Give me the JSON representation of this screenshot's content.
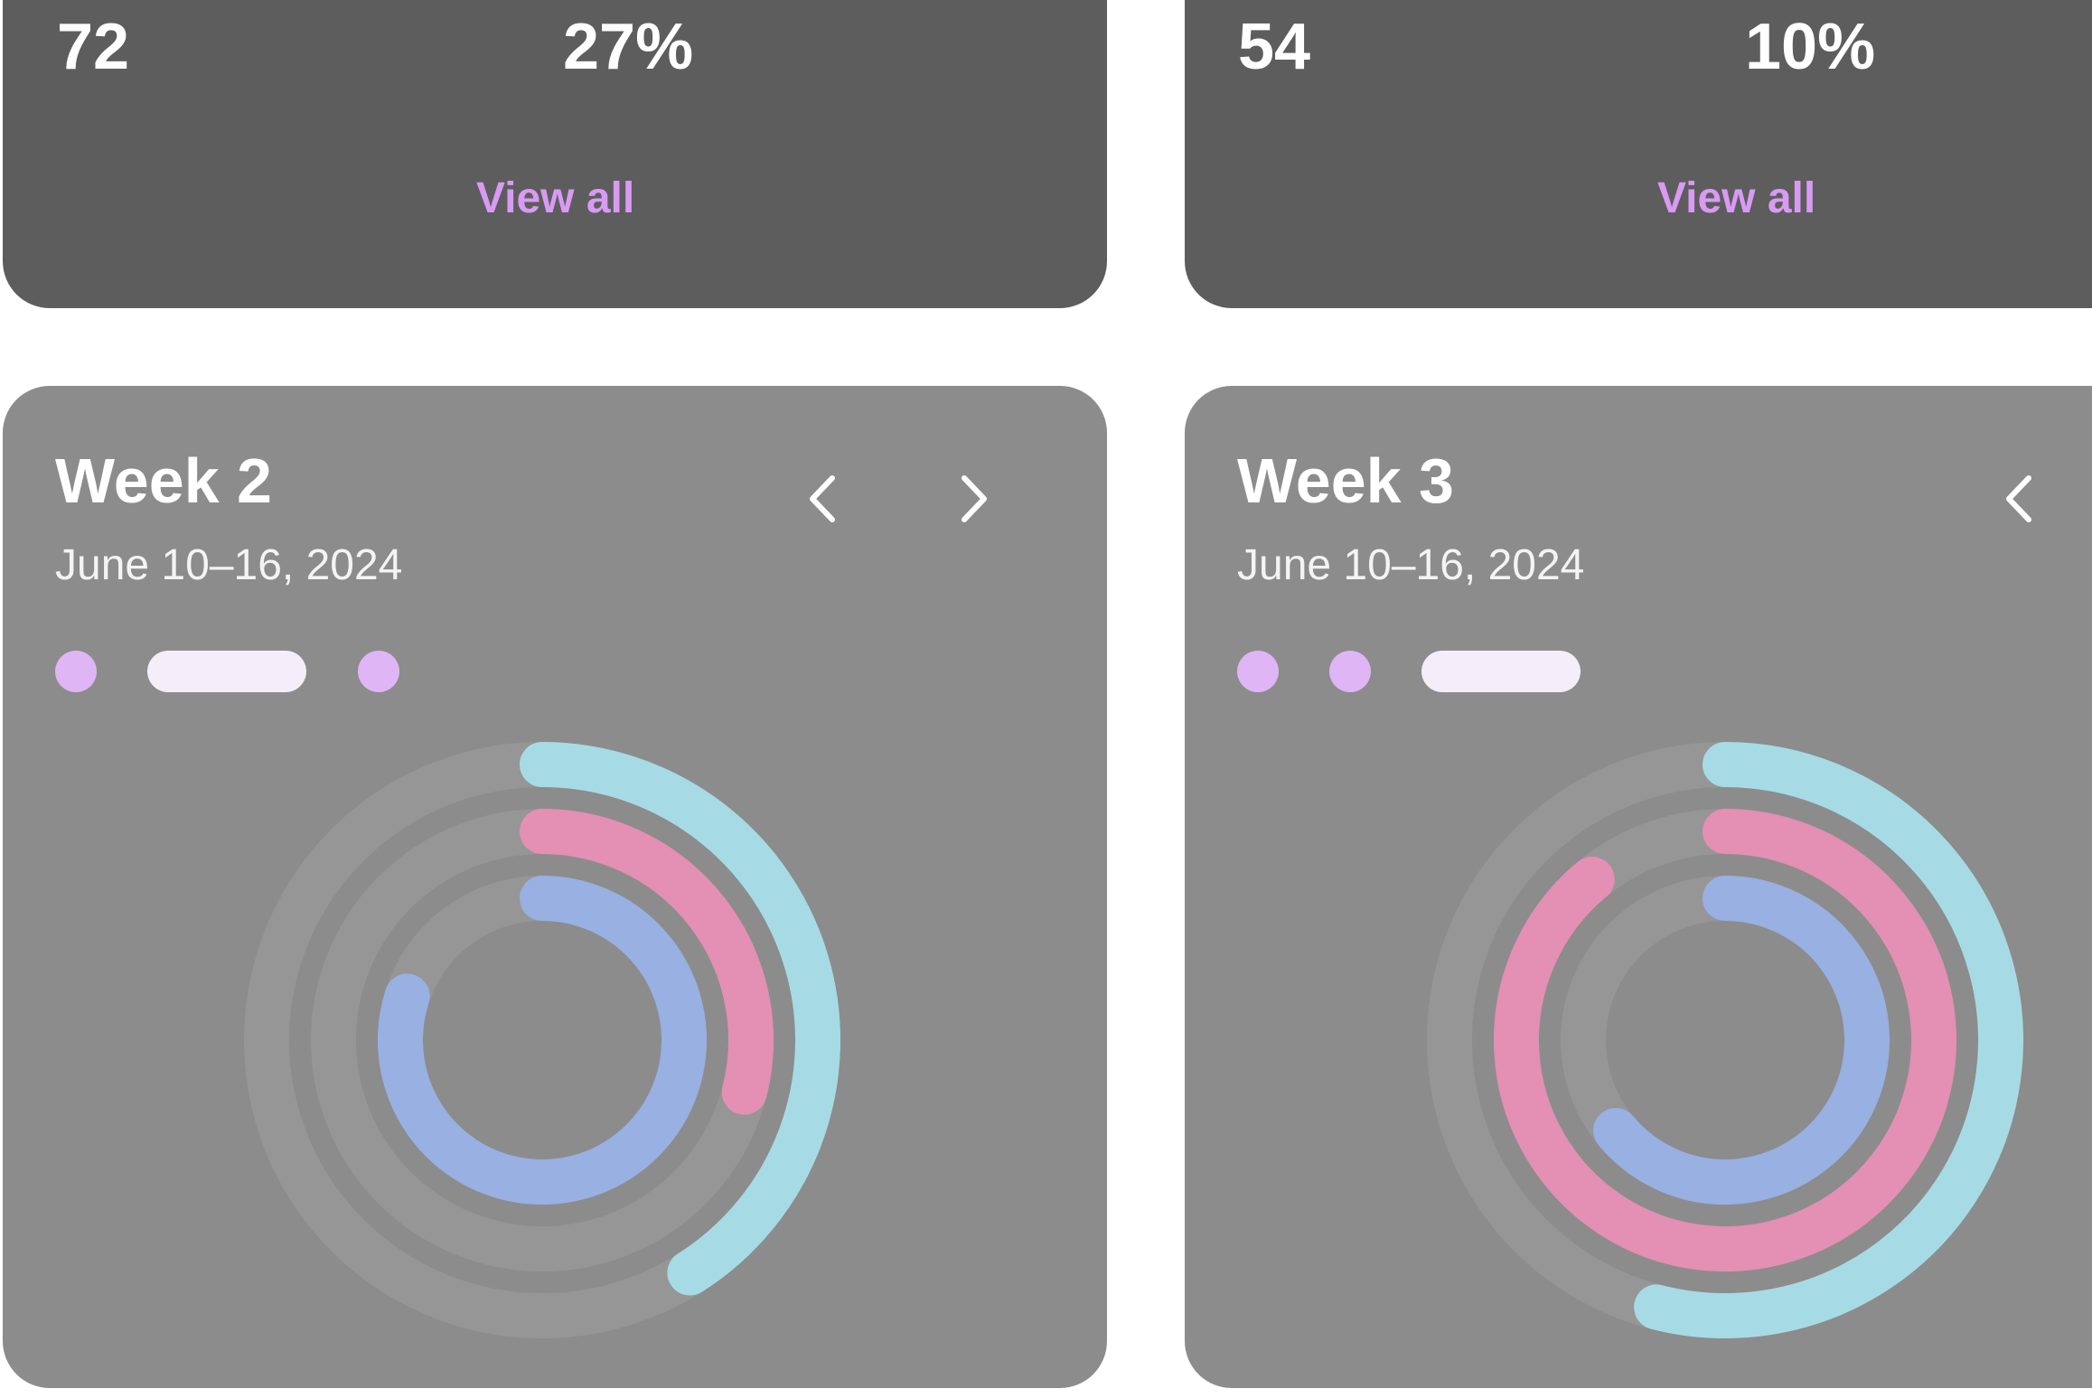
{
  "cards": [
    {
      "stat_left": "72",
      "stat_right": "27%",
      "view_all_label": "View all"
    },
    {
      "stat_left": "54",
      "stat_right": "10%",
      "view_all_label": "View all"
    }
  ],
  "weeks": [
    {
      "title": "Week 2",
      "date_range": "June 10–16, 2024",
      "indicator": "pill-middle",
      "nav": [
        "previous-week",
        "next-week"
      ],
      "rings": [
        {
          "ring": "outer",
          "color": "#a6dbe5",
          "progress": 0.41
        },
        {
          "ring": "middle",
          "color": "#e48fb4",
          "progress": 0.29
        },
        {
          "ring": "inner",
          "color": "#98b0e2",
          "progress": 0.8
        }
      ]
    },
    {
      "title": "Week 3",
      "date_range": "June 10–16, 2024",
      "indicator": "pill-last",
      "nav": [
        "previous-week"
      ],
      "rings": [
        {
          "ring": "outer",
          "color": "#a6dbe5",
          "progress": 0.54
        },
        {
          "ring": "middle",
          "color": "#e48fb4",
          "progress": 0.89
        },
        {
          "ring": "inner",
          "color": "#98b0e2",
          "progress": 0.64
        }
      ]
    }
  ],
  "colors": {
    "card_dark": "#5d5d5d",
    "card_light": "#8c8c8c",
    "accent_purple": "#d89af3",
    "dot": "#dfb5f6",
    "pill": "#f3eefa",
    "track": "#969696"
  }
}
